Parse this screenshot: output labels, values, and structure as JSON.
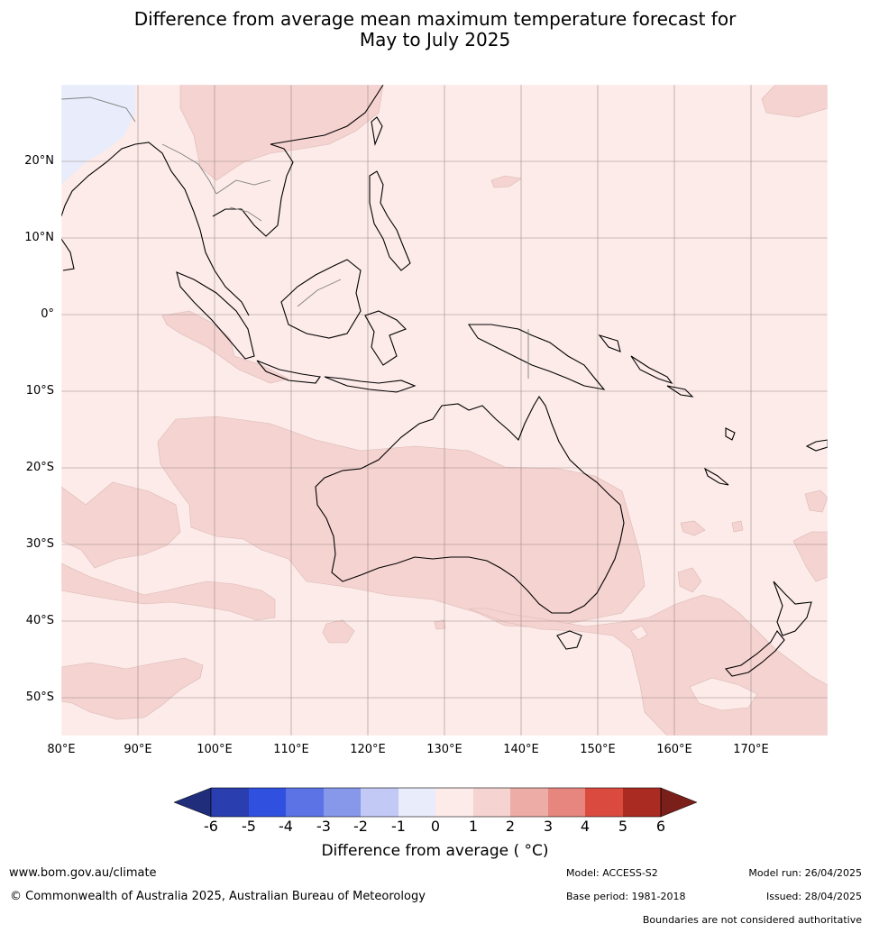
{
  "title": {
    "line1": "Difference from average mean maximum temperature forecast for",
    "line2": "May to July 2025"
  },
  "map": {
    "lat_labels": [
      "20°N",
      "10°N",
      "0°",
      "10°S",
      "20°S",
      "30°S",
      "40°S",
      "50°S"
    ],
    "lon_labels": [
      "80°E",
      "90°E",
      "100°E",
      "110°E",
      "120°E",
      "130°E",
      "140°E",
      "150°E",
      "160°E",
      "170°E"
    ],
    "colors": {
      "zero_to_one": "#fcebe9",
      "one_to_two": "#f5d3d0",
      "minus_one_to_zero": "#e8ecfb",
      "coastline": "#000000",
      "border": "#808080",
      "grid": "#9a8a8a"
    }
  },
  "colorbar": {
    "ticks": [
      "-6",
      "-5",
      "-4",
      "-3",
      "-2",
      "-1",
      "0",
      "1",
      "2",
      "3",
      "4",
      "5",
      "6"
    ],
    "colors": [
      "#1f2d7a",
      "#2a3eb0",
      "#3050e0",
      "#5b73e4",
      "#8797ea",
      "#c2c9f4",
      "#e8ecfb",
      "#fcebe9",
      "#f5d3d0",
      "#edaca6",
      "#e6867e",
      "#da4a3e",
      "#aa2b22",
      "#7a1f1a"
    ],
    "label": "Difference from average ( °C)"
  },
  "footer": {
    "website": "www.bom.gov.au/climate",
    "copyright": "© Commonwealth of Australia 2025, Australian Bureau of Meteorology",
    "model": "Model: ACCESS-S2",
    "base_period": "Base period: 1981-2018",
    "model_run": "Model run: 26/04/2025",
    "issued": "Issued: 28/04/2025",
    "disclaimer": "Boundaries are not considered authoritative"
  }
}
